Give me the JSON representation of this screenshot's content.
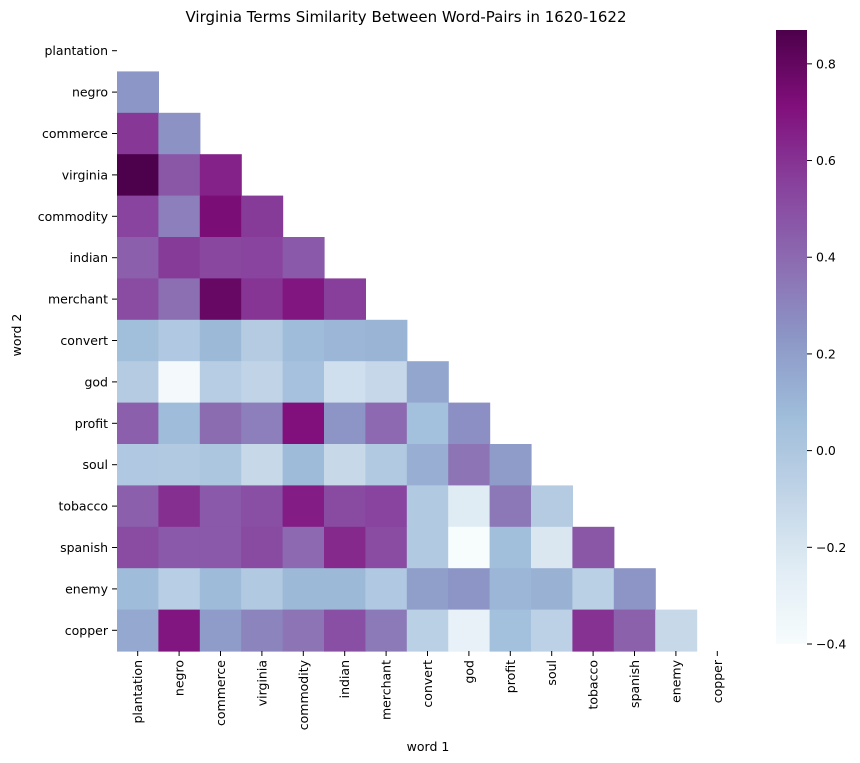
{
  "chart_data": {
    "type": "heatmap",
    "title": "Virginia Terms Similarity Between Word-Pairs in 1620-1622",
    "xlabel": "word 1",
    "ylabel": "word 2",
    "x_categories": [
      "plantation",
      "negro",
      "commerce",
      "virginia",
      "commodity",
      "indian",
      "merchant",
      "convert",
      "god",
      "profit",
      "soul",
      "tobacco",
      "spanish",
      "enemy",
      "copper"
    ],
    "y_categories": [
      "plantation",
      "negro",
      "commerce",
      "virginia",
      "commodity",
      "indian",
      "merchant",
      "convert",
      "god",
      "profit",
      "soul",
      "tobacco",
      "spanish",
      "enemy",
      "copper"
    ],
    "mask": "upper-triangle-including-diagonal",
    "values": [
      [],
      [
        0.23
      ],
      [
        0.58,
        0.25
      ],
      [
        0.87,
        0.47,
        0.65
      ],
      [
        0.54,
        0.32,
        0.73,
        0.57
      ],
      [
        0.44,
        0.57,
        0.53,
        0.54,
        0.46
      ],
      [
        0.51,
        0.38,
        0.79,
        0.59,
        0.69,
        0.56
      ],
      [
        0.06,
        -0.01,
        0.09,
        -0.03,
        0.07,
        0.1,
        0.11
      ],
      [
        -0.03,
        -0.38,
        -0.04,
        -0.09,
        0.04,
        -0.16,
        -0.11,
        0.17
      ],
      [
        0.44,
        0.07,
        0.39,
        0.32,
        0.71,
        0.24,
        0.4,
        0.05,
        0.26
      ],
      [
        -0.01,
        -0.02,
        0.01,
        -0.12,
        0.08,
        -0.12,
        -0.02,
        0.13,
        0.36,
        0.21
      ],
      [
        0.44,
        0.61,
        0.46,
        0.5,
        0.67,
        0.52,
        0.54,
        -0.02,
        -0.24,
        0.35,
        -0.03
      ],
      [
        0.51,
        0.46,
        0.46,
        0.52,
        0.4,
        0.63,
        0.51,
        -0.02,
        -0.4,
        0.06,
        -0.21,
        0.47
      ],
      [
        0.07,
        -0.05,
        0.08,
        -0.02,
        0.09,
        0.09,
        -0.01,
        0.2,
        0.24,
        0.1,
        0.12,
        -0.06,
        0.24
      ],
      [
        0.16,
        0.69,
        0.21,
        0.3,
        0.36,
        0.5,
        0.34,
        -0.06,
        -0.29,
        0.05,
        -0.07,
        0.6,
        0.43,
        -0.12
      ]
    ],
    "colormap": "BuPu",
    "colorbar": {
      "vmin": -0.4,
      "vmax": 0.87,
      "ticks": [
        -0.4,
        -0.2,
        0.0,
        0.2,
        0.4,
        0.6,
        0.8
      ],
      "tick_labels": [
        "−0.4",
        "−0.2",
        "0.0",
        "0.2",
        "0.4",
        "0.6",
        "0.8"
      ]
    },
    "grid": false
  }
}
